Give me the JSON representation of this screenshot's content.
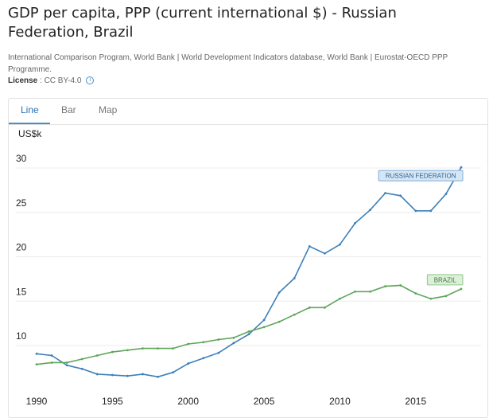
{
  "header": {
    "title": "GDP per capita, PPP (current international $) - Russian Federation, Brazil",
    "source": "International Comparison Program, World Bank | World Development Indicators database, World Bank | Eurostat-OECD PPP Programme.",
    "license_label": "License",
    "license_value": " : CC BY-4.0",
    "info_glyph": "i"
  },
  "tabs": [
    {
      "label": "Line",
      "active": true
    },
    {
      "label": "Bar",
      "active": false
    },
    {
      "label": "Map",
      "active": false
    }
  ],
  "colors": {
    "russia": "#3d7fb8",
    "brazil": "#5fa55a"
  },
  "chart_data": {
    "type": "line",
    "ylabel": "US$k",
    "ylim": [
      5.5,
      30
    ],
    "yticks": [
      10,
      15,
      20,
      25,
      30
    ],
    "xlim": [
      1990,
      2018
    ],
    "xticks": [
      1990,
      1995,
      2000,
      2005,
      2010,
      2015
    ],
    "x": [
      1990,
      1991,
      1992,
      1993,
      1994,
      1995,
      1996,
      1997,
      1998,
      1999,
      2000,
      2001,
      2002,
      2003,
      2004,
      2005,
      2006,
      2007,
      2008,
      2009,
      2010,
      2011,
      2012,
      2013,
      2014,
      2015,
      2016,
      2017,
      2018
    ],
    "series": [
      {
        "name": "RUSSIAN FEDERATION",
        "color_key": "russia",
        "values": [
          8.0,
          7.8,
          6.7,
          6.3,
          5.7,
          5.6,
          5.5,
          5.7,
          5.4,
          5.9,
          6.9,
          7.5,
          8.1,
          9.2,
          10.2,
          11.8,
          14.9,
          16.5,
          20.1,
          19.3,
          20.3,
          22.7,
          24.2,
          26.1,
          25.8,
          24.1,
          24.1,
          26.0,
          29.0
        ]
      },
      {
        "name": "BRAZIL",
        "color_key": "brazil",
        "values": [
          6.8,
          7.0,
          7.0,
          7.4,
          7.8,
          8.2,
          8.4,
          8.6,
          8.6,
          8.6,
          9.1,
          9.3,
          9.6,
          9.8,
          10.5,
          11.0,
          11.6,
          12.4,
          13.2,
          13.2,
          14.2,
          15.0,
          15.0,
          15.6,
          15.7,
          14.8,
          14.2,
          14.5,
          15.3
        ]
      }
    ]
  }
}
